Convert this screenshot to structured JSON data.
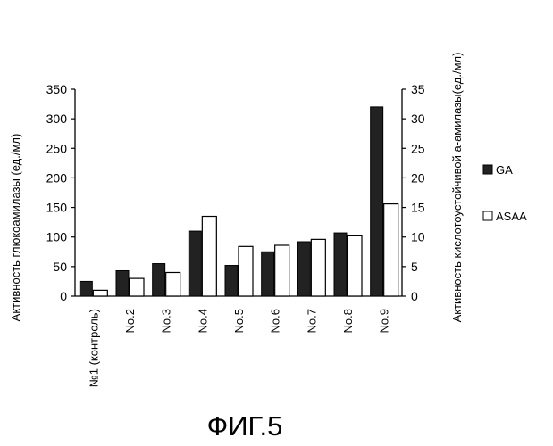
{
  "figure_caption": "ФИГ.5",
  "chart_data": {
    "type": "bar",
    "categories": [
      "№1 (контроль)",
      "No.2",
      "No.3",
      "No.4",
      "No.5",
      "No.6",
      "No.7",
      "No.8",
      "No.9"
    ],
    "series": [
      {
        "name": "GA",
        "axis": "left",
        "color": "#222222",
        "values": [
          25,
          43,
          55,
          110,
          52,
          75,
          92,
          107,
          320
        ]
      },
      {
        "name": "ASAA",
        "axis": "right",
        "color": "#ffffff",
        "values": [
          1,
          3,
          4,
          13.5,
          8.4,
          8.6,
          9.6,
          10.2,
          15.6
        ]
      }
    ],
    "ylabel": "Активность глюкоамилазы (ед./мл)",
    "y2label": "Активность кислотоустойчивой а-амилазы(ед./мл)",
    "ylim": [
      0,
      350
    ],
    "y2lim": [
      0,
      35
    ],
    "yticks": [
      0,
      50,
      100,
      150,
      200,
      250,
      300,
      350
    ],
    "y2ticks": [
      0,
      5,
      10,
      15,
      20,
      25,
      30,
      35
    ],
    "legend": {
      "position": "right",
      "labels": [
        "GA",
        "ASAA"
      ]
    },
    "grid": false
  }
}
